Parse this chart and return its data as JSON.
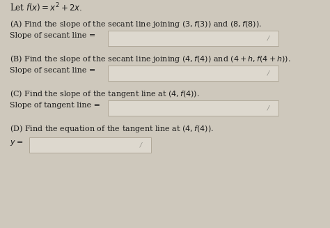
{
  "background_color": "#cec8bc",
  "text_color": "#1a1a1a",
  "title_line": "Let $f(x) = x^2 + 2x.$",
  "parts": [
    {
      "label": "(A)",
      "question": " Find the slope of the secant line joining $(3, f(3))$ and $(8, f(8))$.",
      "answer_label": "Slope of secant line =",
      "box_wide": true
    },
    {
      "label": "(B)",
      "question": " Find the slope of the secant line joining $(4, f(4))$ and $(4+h, f(4+h))$.",
      "answer_label": "Slope of secant line =",
      "box_wide": true
    },
    {
      "label": "(C)",
      "question": " Find the slope of the tangent line at $(4, f(4))$.",
      "answer_label": "Slope of tangent line =",
      "box_wide": true
    },
    {
      "label": "(D)",
      "question": " Find the equation of the tangent line at $(4, f(4))$.",
      "answer_label": "$y =$",
      "box_wide": false
    }
  ],
  "box_facecolor": "#ddd8ce",
  "box_edgecolor": "#b0a898",
  "pencil_color": "#888880",
  "font_size": 8.0,
  "title_font_size": 8.5
}
